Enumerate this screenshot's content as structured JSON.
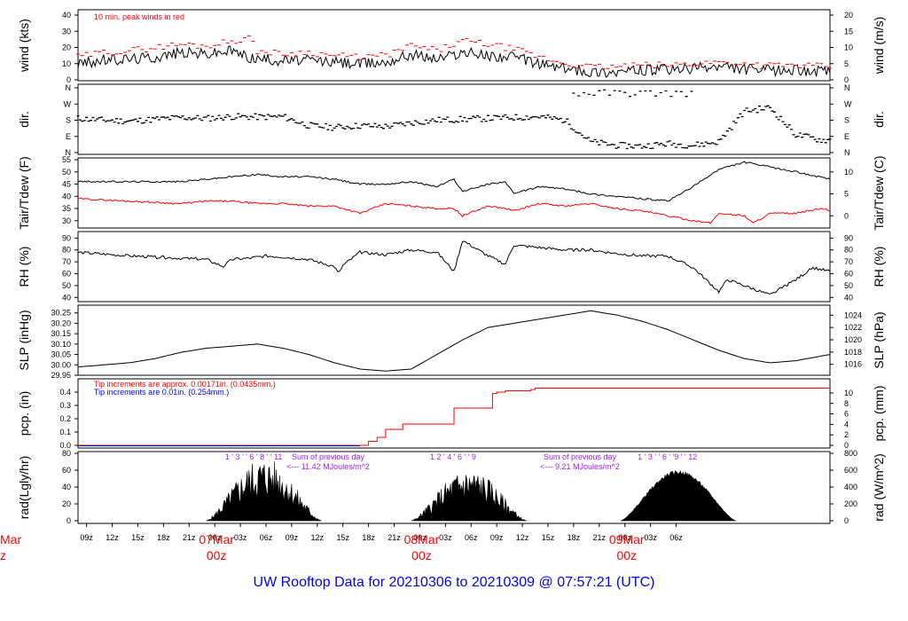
{
  "footer_title": "UW Rooftop Data for 20210306  to  20210309 @ 07:57:21  (UTC)",
  "colors": {
    "red": "#ff0000",
    "blue": "#0000ff",
    "purple": "#a020f0",
    "black": "#000000"
  },
  "time_axis": {
    "hour_labels": [
      "09z",
      "12z",
      "15z",
      "18z",
      "21z",
      "00z",
      "03z",
      "06z",
      "09z",
      "12z",
      "15z",
      "18z",
      "21z",
      "00z",
      "03z",
      "06z",
      "09z",
      "12z",
      "15z",
      "18z",
      "21z",
      "00z",
      "03z",
      "06z"
    ],
    "day_labels": [
      {
        "date": "07Mar",
        "hour": "00z"
      },
      {
        "date": "08Mar",
        "hour": "00z"
      },
      {
        "date": "09Mar",
        "hour": "00z"
      }
    ],
    "cut_left_label": {
      "date": "Mar",
      "hour": "z"
    }
  },
  "chart_data": [
    {
      "type": "line",
      "id": "wind",
      "ylabel": "wind (kts)",
      "ylabel_right": "wind (m/s)",
      "yticks": [
        "0",
        "10",
        "20",
        "30",
        "40"
      ],
      "yticks_right": [
        "0",
        "5",
        "10",
        "15",
        "20"
      ],
      "ylim": [
        0,
        40
      ],
      "annotation": "10 min. peak winds in red",
      "series": [
        {
          "color": "#000000",
          "x_hours": [
            0,
            3,
            6,
            9,
            12,
            15,
            18,
            20,
            21,
            24,
            27,
            30,
            33,
            36,
            39,
            42,
            45,
            48,
            51,
            54,
            57,
            60,
            63,
            66,
            69,
            72,
            75,
            80,
            84,
            88
          ],
          "values": [
            10,
            12,
            13,
            14,
            17,
            16,
            18,
            14,
            13,
            12,
            12,
            11,
            10,
            11,
            16,
            13,
            17,
            15,
            14,
            10,
            7,
            5,
            5,
            6,
            6,
            7,
            8,
            6,
            6,
            5
          ]
        },
        {
          "color": "#ff0000",
          "x_hours": [
            0,
            3,
            6,
            9,
            12,
            15,
            18,
            20,
            21,
            24,
            27,
            30,
            33,
            36,
            39,
            42,
            45,
            48,
            51,
            54,
            57,
            60,
            63,
            66,
            69,
            72,
            75,
            80,
            84,
            88
          ],
          "values": [
            14,
            17,
            18,
            20,
            22,
            21,
            24,
            26,
            18,
            16,
            17,
            15,
            14,
            15,
            21,
            18,
            24,
            22,
            19,
            14,
            10,
            8,
            8,
            9,
            9,
            10,
            11,
            9,
            9,
            8
          ]
        }
      ]
    },
    {
      "type": "scatter",
      "id": "dir",
      "ylabel": "dir.",
      "ylabel_right": "dir.",
      "yticks": [
        "N",
        "E",
        "S",
        "W",
        "N"
      ],
      "yticks_right": [
        "N",
        "E",
        "S",
        "W",
        "N"
      ],
      "ylim": [
        0,
        360
      ],
      "series": [
        {
          "color": "#000000",
          "x_hours": [
            0,
            3,
            6,
            9,
            12,
            15,
            18,
            21,
            24,
            27,
            30,
            33,
            36,
            39,
            42,
            45,
            48,
            51,
            54,
            57,
            60,
            63,
            66,
            69,
            72,
            75,
            78,
            81,
            84,
            87
          ],
          "values": [
            190,
            180,
            175,
            185,
            195,
            190,
            200,
            198,
            200,
            150,
            140,
            150,
            145,
            165,
            180,
            185,
            190,
            195,
            200,
            180,
            60,
            40,
            35,
            50,
            40,
            60,
            230,
            250,
            100,
            70
          ]
        }
      ]
    },
    {
      "type": "line",
      "id": "temp",
      "ylabel": "Tair/Tdew (F)",
      "ylabel_right": "Tair/Tdew (C)",
      "yticks": [
        "30",
        "35",
        "40",
        "45",
        "50",
        "55"
      ],
      "yticks_right": [
        "0",
        "5",
        "10"
      ],
      "ylim": [
        27,
        55
      ],
      "series": [
        {
          "color": "#000000",
          "x_hours": [
            0,
            6,
            12,
            15,
            18,
            21,
            24,
            27,
            30,
            33,
            36,
            39,
            42,
            44,
            45,
            48,
            50,
            51,
            54,
            57,
            60,
            63,
            66,
            69,
            72,
            75,
            78,
            81,
            84,
            88
          ],
          "values": [
            46,
            46,
            46,
            47,
            48,
            49,
            48,
            48,
            47,
            45,
            45,
            46,
            44,
            47,
            42,
            45,
            46,
            41,
            44,
            43,
            41,
            40,
            39,
            38,
            44,
            51,
            54,
            52,
            50,
            47
          ]
        },
        {
          "color": "#ff0000",
          "x_hours": [
            0,
            6,
            12,
            15,
            18,
            21,
            24,
            27,
            30,
            33,
            36,
            39,
            42,
            44,
            45,
            48,
            50,
            51,
            54,
            57,
            60,
            63,
            66,
            69,
            72,
            74,
            75,
            78,
            79,
            81,
            84,
            87,
            88
          ],
          "values": [
            39,
            38,
            37,
            38,
            38,
            37,
            37,
            36,
            36,
            33,
            37,
            36,
            35,
            35,
            32,
            36,
            35,
            34,
            37,
            36,
            37,
            35,
            34,
            32,
            30,
            29,
            33,
            32,
            29,
            33,
            33,
            35,
            34
          ]
        }
      ]
    },
    {
      "type": "line",
      "id": "rh",
      "ylabel": "RH (%)",
      "ylabel_right": "RH (%)",
      "yticks": [
        "40",
        "50",
        "60",
        "70",
        "80",
        "90"
      ],
      "yticks_right": [
        "40",
        "50",
        "60",
        "70",
        "80",
        "90"
      ],
      "ylim": [
        38,
        91
      ],
      "series": [
        {
          "color": "#000000",
          "x_hours": [
            0,
            6,
            12,
            15,
            17,
            18,
            20,
            22,
            24,
            27,
            30,
            30.5,
            31,
            33,
            36,
            39,
            42,
            44,
            45,
            48,
            50,
            51,
            54,
            57,
            60,
            63,
            66,
            69,
            72,
            75,
            76,
            78,
            81,
            84,
            86,
            88
          ],
          "values": [
            78,
            75,
            73,
            72,
            66,
            72,
            73,
            75,
            74,
            72,
            66,
            60,
            67,
            78,
            76,
            80,
            78,
            62,
            88,
            75,
            68,
            84,
            82,
            80,
            80,
            77,
            75,
            75,
            65,
            45,
            55,
            50,
            42,
            55,
            65,
            62
          ]
        }
      ]
    },
    {
      "type": "line",
      "id": "slp",
      "ylabel": "SLP (inHg)",
      "ylabel_right": "SLP (hPa)",
      "yticks": [
        "29.95",
        "30.00",
        "30.05",
        "30.10",
        "30.15",
        "30.20",
        "30.25"
      ],
      "yticks_right": [
        "1016",
        "1018",
        "1020",
        "1022",
        "1024"
      ],
      "ylim": [
        29.95,
        30.27
      ],
      "series": [
        {
          "color": "#000000",
          "x_hours": [
            0,
            3,
            6,
            9,
            12,
            15,
            18,
            21,
            24,
            27,
            30,
            33,
            36,
            39,
            42,
            45,
            48,
            51,
            54,
            57,
            60,
            63,
            66,
            69,
            72,
            75,
            78,
            81,
            84,
            88
          ],
          "values": [
            29.99,
            30.0,
            30.01,
            30.03,
            30.06,
            30.08,
            30.09,
            30.1,
            30.08,
            30.05,
            30.01,
            29.98,
            29.97,
            29.98,
            30.05,
            30.12,
            30.18,
            30.2,
            30.22,
            30.24,
            30.26,
            30.24,
            30.21,
            30.17,
            30.12,
            30.07,
            30.03,
            30.01,
            30.02,
            30.05
          ]
        }
      ]
    },
    {
      "type": "line",
      "id": "pcp",
      "ylabel": "pcp. (in)",
      "ylabel_right": "pcp. (mm)",
      "yticks": [
        "0.0",
        "0.1",
        "0.2",
        "0.3",
        "0.4"
      ],
      "yticks_right": [
        "0",
        "2",
        "4",
        "6",
        "8",
        "10"
      ],
      "ylim": [
        0,
        0.44
      ],
      "notes": [
        {
          "text": "Tip increments are approx. 0.00171in. (0.0435mm.)",
          "color": "#ff0000"
        },
        {
          "text": "Tip increments are 0.01in. (0.254mm.)",
          "color": "#0000ff"
        }
      ],
      "series": [
        {
          "color": "#ff0000",
          "x_hours": [
            0,
            33,
            34,
            35,
            36,
            38,
            42,
            44,
            44.5,
            48,
            48.5,
            49,
            50,
            53,
            53.5,
            88
          ],
          "values": [
            0,
            0,
            0.03,
            0.06,
            0.12,
            0.16,
            0.16,
            0.28,
            0.28,
            0.28,
            0.39,
            0.4,
            0.41,
            0.42,
            0.43,
            0.43
          ]
        }
      ]
    },
    {
      "type": "area",
      "id": "rad",
      "ylabel": "rad(Lgly/hr)",
      "ylabel_right": "rad (W/m^2)",
      "yticks": [
        "0",
        "20",
        "40",
        "60",
        "80"
      ],
      "yticks_right": [
        "0",
        "200",
        "400",
        "600",
        "800"
      ],
      "ylim": [
        0,
        80
      ],
      "day_peaks": [
        75,
        62,
        60
      ],
      "hourly_labels": [
        "1 ' 3 ' ' 6 ' 8 ' ' 11",
        "1  2 ' 4 ' 6 ' '  9",
        "1 ' 3 ' ' 6 ' '9 ' ' 12"
      ],
      "daily_sums": [
        {
          "line1": "Sum of previous day",
          "line2": "<--- 11.42 MJoules/m^2"
        },
        {
          "line1": "Sum of previous day",
          "line2": "<--- 9.21 MJoules/m^2"
        }
      ],
      "series": [
        {
          "color": "#000000"
        }
      ]
    }
  ]
}
